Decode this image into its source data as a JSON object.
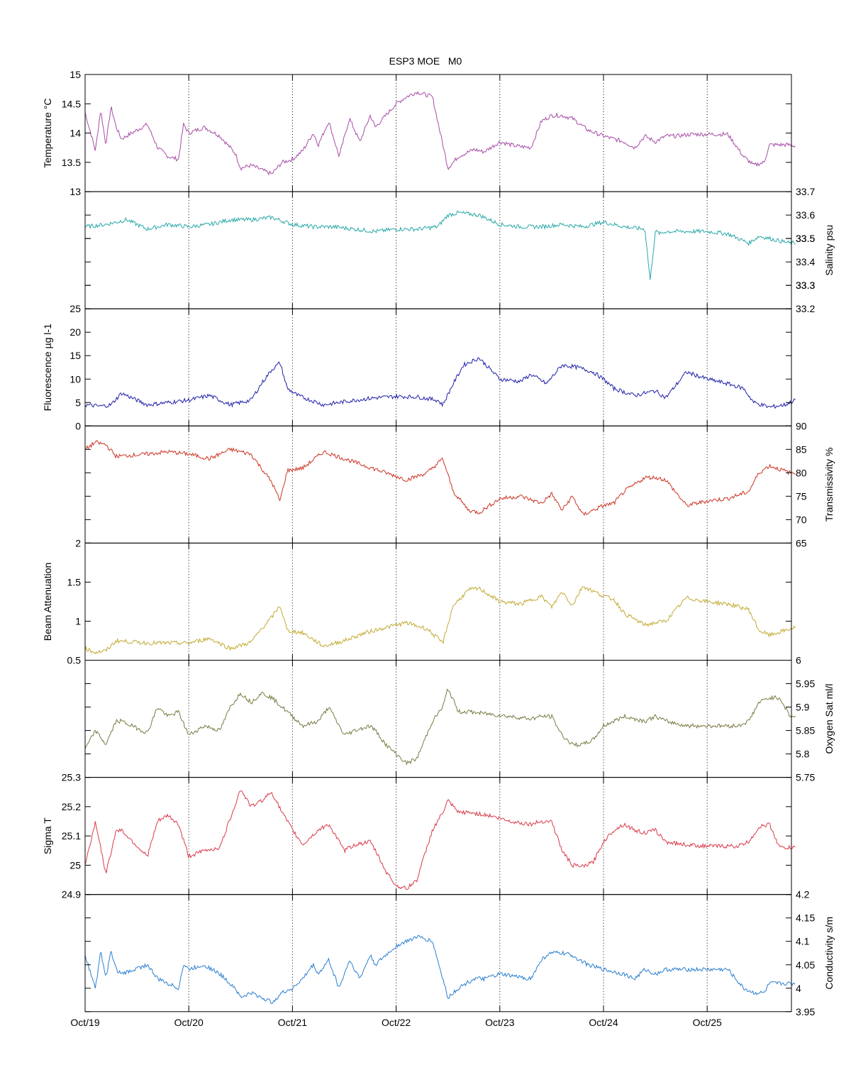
{
  "chart_data": {
    "type": "line",
    "title": "ESP3 MOE   M0",
    "x": {
      "type": "date",
      "range": [
        "Oct/19",
        "Oct/25 20:30"
      ],
      "ticks": [
        "Oct/19",
        "Oct/20",
        "Oct/21",
        "Oct/22",
        "Oct/23",
        "Oct/24",
        "Oct/25"
      ],
      "grid": "vertical dotted"
    },
    "panels": [
      {
        "id": "temperature",
        "ylabel": "Temperature °C",
        "axis_side": "left",
        "ylim": [
          13,
          15
        ],
        "yticks": [
          "13",
          "13.5",
          "14",
          "14.5",
          "15"
        ],
        "color": "#a64ca6",
        "series": {
          "x": [
            0,
            0.1,
            0.15,
            0.2,
            0.25,
            0.3,
            0.35,
            0.6,
            0.7,
            0.8,
            0.9,
            0.95,
            1.0,
            1.15,
            1.3,
            1.45,
            1.5,
            1.6,
            1.8,
            1.9,
            2.0,
            2.1,
            2.2,
            2.25,
            2.35,
            2.45,
            2.55,
            2.65,
            2.75,
            2.8,
            3.0,
            3.1,
            3.2,
            3.35,
            3.5,
            3.6,
            3.75,
            3.85,
            4.0,
            4.15,
            4.3,
            4.4,
            4.45,
            4.5,
            4.6,
            4.7,
            4.85,
            5.0,
            5.1,
            5.2,
            5.3,
            5.4,
            5.5,
            5.6,
            5.7,
            5.85,
            6.0,
            6.2,
            6.35,
            6.45,
            6.55,
            6.6,
            6.7,
            6.78,
            6.85
          ],
          "y": [
            14.35,
            13.7,
            14.4,
            13.8,
            14.45,
            14.1,
            13.9,
            14.15,
            13.75,
            13.6,
            13.55,
            14.15,
            14.0,
            14.1,
            13.95,
            13.65,
            13.4,
            13.45,
            13.3,
            13.5,
            13.55,
            13.7,
            14.0,
            13.8,
            14.2,
            13.6,
            14.25,
            13.85,
            14.3,
            14.1,
            14.5,
            14.62,
            14.7,
            14.62,
            13.4,
            13.6,
            13.72,
            13.68,
            13.85,
            13.78,
            13.75,
            14.2,
            14.25,
            14.3,
            14.3,
            14.25,
            14.05,
            13.95,
            13.9,
            13.85,
            13.75,
            13.95,
            13.85,
            13.95,
            13.95,
            13.98,
            13.98,
            13.98,
            13.6,
            13.45,
            13.5,
            13.8,
            13.8,
            13.8,
            13.78
          ]
        }
      },
      {
        "id": "salinity",
        "ylabel": "Salinity psu",
        "axis_side": "right",
        "ylim": [
          33.2,
          33.7
        ],
        "yticks": [
          "33.2",
          "33.3",
          "33.3",
          "33.4",
          "33.5",
          "33.5",
          "33.6",
          "33.7"
        ],
        "color": "#2aa8a8",
        "series": {
          "x": [
            0,
            0.2,
            0.4,
            0.6,
            0.8,
            1.0,
            1.2,
            1.4,
            1.6,
            1.8,
            2.0,
            2.2,
            2.4,
            2.6,
            2.8,
            3.0,
            3.2,
            3.4,
            3.5,
            3.6,
            3.8,
            4.0,
            4.2,
            4.4,
            4.6,
            4.8,
            5.0,
            5.2,
            5.4,
            5.45,
            5.5,
            5.55,
            5.6,
            5.8,
            6.0,
            6.2,
            6.3,
            6.4,
            6.5,
            6.6,
            6.8,
            6.85
          ],
          "y": [
            33.55,
            33.56,
            33.58,
            33.54,
            33.56,
            33.55,
            33.56,
            33.58,
            33.58,
            33.59,
            33.56,
            33.55,
            33.55,
            33.54,
            33.53,
            33.54,
            33.54,
            33.55,
            33.6,
            33.61,
            33.6,
            33.56,
            33.55,
            33.55,
            33.56,
            33.55,
            33.57,
            33.55,
            33.54,
            33.32,
            33.53,
            33.52,
            33.53,
            33.53,
            33.53,
            33.52,
            33.5,
            33.48,
            33.51,
            33.5,
            33.48,
            33.48
          ]
        }
      },
      {
        "id": "fluorescence",
        "ylabel": "Fluorescence µg l-1",
        "axis_side": "left",
        "ylim": [
          0,
          25
        ],
        "yticks": [
          "0",
          "5",
          "10",
          "15",
          "20",
          "25"
        ],
        "color": "#1f1faa",
        "series": {
          "x": [
            0,
            0.15,
            0.25,
            0.35,
            0.6,
            0.8,
            1.0,
            1.2,
            1.4,
            1.6,
            1.7,
            1.8,
            1.88,
            1.95,
            2.05,
            2.3,
            2.6,
            2.8,
            3.0,
            3.2,
            3.4,
            3.45,
            3.55,
            3.65,
            3.8,
            4.0,
            4.2,
            4.3,
            4.45,
            4.6,
            4.75,
            4.9,
            5.0,
            5.1,
            5.3,
            5.5,
            5.6,
            5.8,
            6.0,
            6.2,
            6.35,
            6.45,
            6.6,
            6.75,
            6.85
          ],
          "y": [
            4.5,
            4.2,
            4.5,
            7.0,
            4.5,
            5.0,
            5.5,
            6.5,
            4.5,
            5.5,
            9.0,
            12.0,
            13.5,
            8.0,
            6.5,
            4.5,
            5.5,
            6.0,
            6.3,
            6.2,
            5.5,
            4.5,
            9.0,
            13.0,
            14.5,
            10.0,
            9.5,
            11.0,
            9.0,
            13.0,
            12.5,
            11.5,
            10.0,
            8.0,
            6.5,
            7.5,
            6.0,
            11.5,
            10.0,
            9.0,
            8.0,
            5.0,
            4.0,
            4.5,
            5.5
          ]
        }
      },
      {
        "id": "transmissivity",
        "ylabel": "Transmissivity %",
        "axis_side": "right",
        "ylim": [
          65,
          90
        ],
        "yticks": [
          "65",
          "70",
          "75",
          "80",
          "85",
          "90"
        ],
        "color": "#cc3322",
        "series": {
          "x": [
            0,
            0.1,
            0.2,
            0.3,
            0.6,
            0.8,
            1.0,
            1.2,
            1.4,
            1.6,
            1.7,
            1.8,
            1.88,
            1.95,
            2.1,
            2.3,
            2.5,
            2.7,
            2.9,
            3.1,
            3.3,
            3.45,
            3.55,
            3.7,
            3.8,
            4.0,
            4.2,
            4.4,
            4.5,
            4.6,
            4.7,
            4.8,
            5.0,
            5.1,
            5.2,
            5.4,
            5.5,
            5.6,
            5.8,
            6.0,
            6.2,
            6.4,
            6.5,
            6.6,
            6.8,
            6.85
          ],
          "y": [
            85.0,
            86.5,
            86.0,
            83.5,
            84.0,
            84.5,
            84.0,
            83.0,
            85.0,
            84.0,
            81.0,
            78.0,
            74.0,
            80.5,
            81.0,
            84.5,
            83.0,
            81.5,
            80.0,
            78.5,
            80.0,
            83.0,
            76.0,
            72.0,
            71.5,
            74.5,
            75.0,
            73.5,
            75.5,
            72.0,
            75.0,
            71.0,
            73.0,
            73.5,
            76.0,
            79.0,
            79.0,
            78.5,
            73.0,
            74.0,
            74.5,
            76.0,
            80.0,
            81.5,
            80.0,
            80.0
          ]
        }
      },
      {
        "id": "beam_attenuation",
        "ylabel": "Beam Attenuation",
        "axis_side": "left",
        "ylim": [
          0.5,
          2
        ],
        "yticks": [
          "0.5",
          "1",
          "1.5",
          "2"
        ],
        "color": "#c2aa33",
        "series": {
          "x": [
            0,
            0.1,
            0.2,
            0.3,
            0.6,
            0.8,
            1.0,
            1.2,
            1.4,
            1.6,
            1.7,
            1.8,
            1.88,
            1.95,
            2.1,
            2.3,
            2.5,
            2.7,
            2.9,
            3.1,
            3.3,
            3.45,
            3.55,
            3.7,
            3.8,
            4.0,
            4.2,
            4.4,
            4.5,
            4.6,
            4.7,
            4.8,
            5.0,
            5.1,
            5.2,
            5.4,
            5.5,
            5.6,
            5.8,
            6.0,
            6.2,
            6.4,
            6.5,
            6.6,
            6.8,
            6.85
          ],
          "y": [
            0.65,
            0.6,
            0.62,
            0.75,
            0.72,
            0.72,
            0.72,
            0.78,
            0.65,
            0.73,
            0.9,
            1.05,
            1.2,
            0.88,
            0.85,
            0.68,
            0.75,
            0.85,
            0.92,
            0.98,
            0.9,
            0.72,
            1.2,
            1.4,
            1.42,
            1.25,
            1.22,
            1.32,
            1.18,
            1.38,
            1.2,
            1.45,
            1.32,
            1.28,
            1.1,
            0.95,
            0.98,
            1.0,
            1.3,
            1.25,
            1.22,
            1.15,
            0.88,
            0.82,
            0.9,
            0.92
          ]
        }
      },
      {
        "id": "oxygen_sat",
        "ylabel": "Oxygen Sat ml/l",
        "axis_side": "right",
        "ylim": [
          5.75,
          6
        ],
        "yticks": [
          "5.75",
          "5.8",
          "5.85",
          "5.9",
          "5.95",
          "6"
        ],
        "color": "#7a7a44",
        "series": {
          "x": [
            0,
            0.1,
            0.2,
            0.3,
            0.35,
            0.6,
            0.7,
            0.8,
            0.9,
            1.0,
            1.15,
            1.3,
            1.4,
            1.5,
            1.6,
            1.7,
            1.8,
            1.9,
            2.0,
            2.1,
            2.25,
            2.35,
            2.5,
            2.6,
            2.75,
            2.8,
            2.9,
            3.0,
            3.1,
            3.2,
            3.35,
            3.45,
            3.5,
            3.6,
            3.7,
            3.9,
            4.1,
            4.3,
            4.4,
            4.5,
            4.6,
            4.7,
            4.8,
            4.9,
            5.0,
            5.1,
            5.2,
            5.3,
            5.4,
            5.5,
            5.6,
            5.8,
            6.0,
            6.2,
            6.3,
            6.4,
            6.5,
            6.6,
            6.7,
            6.8,
            6.85
          ],
          "y": [
            5.81,
            5.85,
            5.82,
            5.87,
            5.87,
            5.845,
            5.9,
            5.88,
            5.89,
            5.84,
            5.86,
            5.85,
            5.9,
            5.93,
            5.91,
            5.93,
            5.92,
            5.9,
            5.88,
            5.86,
            5.87,
            5.9,
            5.84,
            5.85,
            5.86,
            5.85,
            5.82,
            5.8,
            5.78,
            5.79,
            5.87,
            5.9,
            5.94,
            5.89,
            5.89,
            5.885,
            5.88,
            5.875,
            5.88,
            5.88,
            5.84,
            5.82,
            5.82,
            5.83,
            5.86,
            5.87,
            5.88,
            5.875,
            5.87,
            5.88,
            5.87,
            5.86,
            5.86,
            5.86,
            5.86,
            5.87,
            5.91,
            5.92,
            5.92,
            5.88,
            5.88
          ]
        }
      },
      {
        "id": "sigma_t",
        "ylabel": "Sigma T",
        "axis_side": "left",
        "ylim": [
          24.9,
          25.3
        ],
        "yticks": [
          "24.9",
          "25",
          "25.1",
          "25.2",
          "25.3"
        ],
        "color": "#d83a4a",
        "series": {
          "x": [
            0,
            0.1,
            0.2,
            0.3,
            0.35,
            0.6,
            0.7,
            0.8,
            0.9,
            1.0,
            1.15,
            1.3,
            1.4,
            1.5,
            1.6,
            1.7,
            1.8,
            1.9,
            2.0,
            2.1,
            2.25,
            2.35,
            2.5,
            2.6,
            2.75,
            2.8,
            2.9,
            3.0,
            3.1,
            3.2,
            3.35,
            3.45,
            3.5,
            3.6,
            3.7,
            3.9,
            4.1,
            4.3,
            4.4,
            4.5,
            4.6,
            4.7,
            4.8,
            4.9,
            5.0,
            5.1,
            5.2,
            5.3,
            5.4,
            5.5,
            5.6,
            5.8,
            6.0,
            6.2,
            6.3,
            6.4,
            6.5,
            6.6,
            6.7,
            6.8,
            6.85
          ],
          "y": [
            25.0,
            25.15,
            24.97,
            25.12,
            25.12,
            25.03,
            25.15,
            25.17,
            25.14,
            25.03,
            25.05,
            25.06,
            25.16,
            25.26,
            25.2,
            25.22,
            25.25,
            25.18,
            25.12,
            25.07,
            25.12,
            25.14,
            25.05,
            25.07,
            25.08,
            25.05,
            24.98,
            24.93,
            24.92,
            24.95,
            25.12,
            25.18,
            25.22,
            25.18,
            25.18,
            25.17,
            25.15,
            25.14,
            25.15,
            25.15,
            25.05,
            25.0,
            24.995,
            25.01,
            25.08,
            25.12,
            25.14,
            25.12,
            25.11,
            25.12,
            25.08,
            25.07,
            25.065,
            25.065,
            25.065,
            25.08,
            25.13,
            25.14,
            25.06,
            25.06,
            25.06
          ]
        }
      },
      {
        "id": "conductivity",
        "ylabel": "Conductivity s/m",
        "axis_side": "right",
        "ylim": [
          3.95,
          4.2
        ],
        "yticks": [
          "3.95",
          "4",
          "4.05",
          "4.1",
          "4.15",
          "4.2"
        ],
        "color": "#2a7fcf",
        "series": {
          "x": [
            0,
            0.1,
            0.15,
            0.2,
            0.25,
            0.3,
            0.35,
            0.6,
            0.7,
            0.8,
            0.9,
            0.95,
            1.0,
            1.15,
            1.3,
            1.45,
            1.5,
            1.6,
            1.8,
            1.9,
            2.0,
            2.1,
            2.2,
            2.25,
            2.35,
            2.45,
            2.55,
            2.65,
            2.75,
            2.8,
            3.0,
            3.1,
            3.2,
            3.35,
            3.5,
            3.6,
            3.75,
            3.85,
            4.0,
            4.15,
            4.3,
            4.4,
            4.45,
            4.5,
            4.6,
            4.7,
            4.85,
            5.0,
            5.1,
            5.2,
            5.3,
            5.4,
            5.5,
            5.6,
            5.7,
            5.85,
            6.0,
            6.2,
            6.35,
            6.45,
            6.55,
            6.6,
            6.7,
            6.78,
            6.85
          ],
          "y": [
            4.07,
            4.0,
            4.08,
            4.02,
            4.08,
            4.04,
            4.03,
            4.05,
            4.02,
            4.01,
            4.0,
            4.05,
            4.04,
            4.05,
            4.03,
            4.0,
            3.98,
            3.99,
            3.97,
            3.99,
            4.0,
            4.02,
            4.05,
            4.03,
            4.06,
            4.0,
            4.06,
            4.02,
            4.07,
            4.05,
            4.09,
            4.1,
            4.11,
            4.1,
            3.98,
            4.0,
            4.02,
            4.02,
            4.03,
            4.025,
            4.02,
            4.06,
            4.07,
            4.075,
            4.075,
            4.07,
            4.05,
            4.04,
            4.035,
            4.03,
            4.02,
            4.04,
            4.03,
            4.04,
            4.04,
            4.04,
            4.04,
            4.04,
            4.0,
            3.99,
            3.99,
            4.01,
            4.01,
            4.01,
            4.01
          ]
        }
      }
    ],
    "grid": "vertical dotted at day boundaries",
    "legend": "none"
  }
}
